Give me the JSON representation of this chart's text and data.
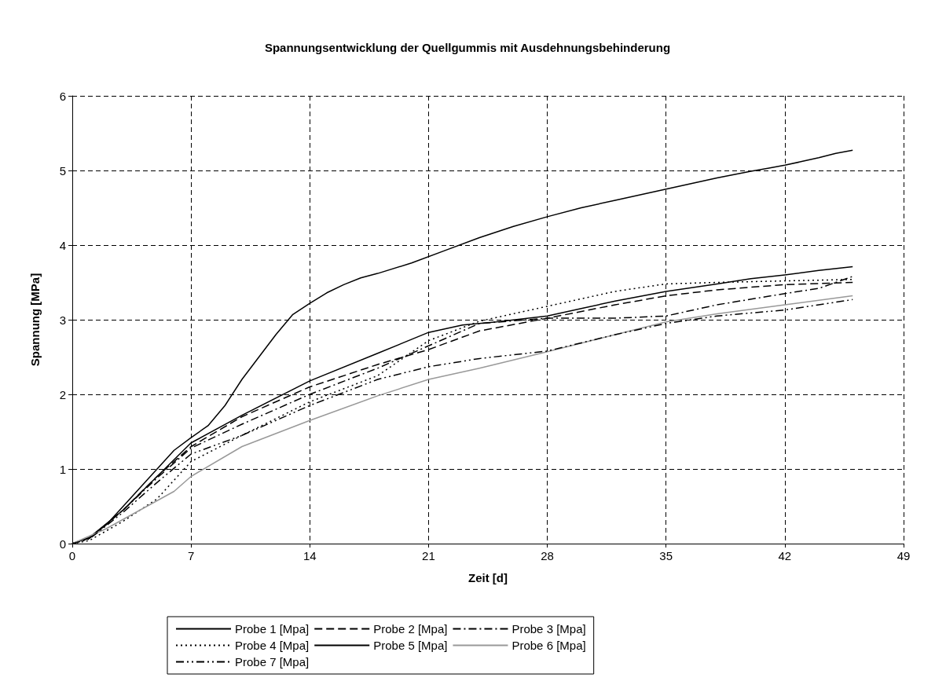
{
  "chart_data": {
    "type": "line",
    "title": "Spannungsentwicklung der Quellgummis mit Ausdehnungsbehinderung",
    "xlabel": "Zeit [d]",
    "ylabel": "Spannung [MPa]",
    "xlim": [
      0,
      49
    ],
    "xticks": [
      0,
      7,
      14,
      21,
      28,
      35,
      42,
      49
    ],
    "ylim": [
      0,
      6
    ],
    "yticks": [
      0,
      1,
      2,
      3,
      4,
      5,
      6
    ],
    "grid": true,
    "legend": "bottom",
    "marker": "none",
    "series": [
      {
        "name": "Probe 1 [Mpa]",
        "color": "#000000",
        "line_style": "solid",
        "x": [
          0,
          1,
          2,
          3,
          4,
          5,
          6,
          7,
          8,
          9,
          10,
          11,
          12,
          13,
          14,
          15,
          16,
          17,
          18,
          20,
          22,
          24,
          26,
          28,
          30,
          32,
          34,
          36,
          38,
          40,
          41,
          42,
          43,
          44,
          45,
          46
        ],
        "values": [
          0,
          0.08,
          0.25,
          0.5,
          0.75,
          1.0,
          1.25,
          1.42,
          1.58,
          1.85,
          2.2,
          2.5,
          2.8,
          3.07,
          3.22,
          3.36,
          3.47,
          3.56,
          3.62,
          3.76,
          3.93,
          4.1,
          4.25,
          4.38,
          4.5,
          4.6,
          4.7,
          4.8,
          4.9,
          4.99,
          5.03,
          5.07,
          5.12,
          5.17,
          5.23,
          5.27
        ]
      },
      {
        "name": "Probe 2 [Mpa]",
        "color": "#000000",
        "line_style": "dashed",
        "x": [
          0,
          1,
          3,
          5,
          7,
          10,
          14,
          18,
          21,
          24,
          28,
          32,
          35,
          38,
          42,
          46
        ],
        "values": [
          0,
          0.07,
          0.45,
          0.9,
          1.3,
          1.7,
          2.1,
          2.4,
          2.6,
          2.85,
          3.02,
          3.2,
          3.32,
          3.4,
          3.47,
          3.5
        ]
      },
      {
        "name": "Probe 3 [Mpa]",
        "color": "#000000",
        "line_style": "dashdot",
        "x": [
          0,
          1,
          3,
          5,
          7,
          10,
          14,
          18,
          21,
          24,
          28,
          32,
          35,
          38,
          42,
          44,
          46
        ],
        "values": [
          0,
          0.07,
          0.45,
          0.88,
          1.28,
          1.6,
          2.0,
          2.35,
          2.65,
          2.95,
          3.02,
          3.02,
          3.05,
          3.2,
          3.35,
          3.42,
          3.58
        ]
      },
      {
        "name": "Probe 4 [Mpa]",
        "color": "#000000",
        "line_style": "dotted",
        "x": [
          0,
          1,
          3,
          5,
          7,
          10,
          14,
          18,
          21,
          24,
          28,
          32,
          35,
          38,
          42,
          46
        ],
        "values": [
          0,
          0.04,
          0.3,
          0.6,
          1.1,
          1.45,
          1.9,
          2.25,
          2.72,
          2.98,
          3.18,
          3.38,
          3.48,
          3.5,
          3.52,
          3.54
        ]
      },
      {
        "name": "Probe 5 [Mpa]",
        "color": "#000000",
        "line_style": "solid",
        "x": [
          0,
          1,
          3,
          5,
          7,
          10,
          14,
          18,
          21,
          23,
          25,
          28,
          30,
          32,
          35,
          38,
          40,
          42,
          44,
          46
        ],
        "values": [
          0,
          0.08,
          0.45,
          0.9,
          1.35,
          1.72,
          2.18,
          2.55,
          2.83,
          2.93,
          2.97,
          3.05,
          3.15,
          3.25,
          3.38,
          3.48,
          3.55,
          3.6,
          3.66,
          3.71
        ]
      },
      {
        "name": "Probe 6 [Mpa]",
        "color": "#999999",
        "line_style": "solid",
        "x": [
          0,
          2,
          4,
          6,
          7,
          10,
          14,
          18,
          21,
          24,
          28,
          32,
          35,
          38,
          42,
          46
        ],
        "values": [
          0,
          0.2,
          0.45,
          0.7,
          0.9,
          1.3,
          1.65,
          1.98,
          2.2,
          2.35,
          2.57,
          2.8,
          2.97,
          3.08,
          3.2,
          3.32
        ]
      },
      {
        "name": "Probe 7 [Mpa]",
        "color": "#000000",
        "line_style": "dashdotdot",
        "x": [
          0,
          1,
          3,
          5,
          7,
          10,
          14,
          18,
          21,
          24,
          28,
          32,
          35,
          38,
          42,
          44,
          46
        ],
        "values": [
          0,
          0.06,
          0.42,
          0.82,
          1.2,
          1.45,
          1.85,
          2.2,
          2.37,
          2.48,
          2.58,
          2.8,
          2.95,
          3.05,
          3.13,
          3.2,
          3.27
        ]
      }
    ]
  }
}
